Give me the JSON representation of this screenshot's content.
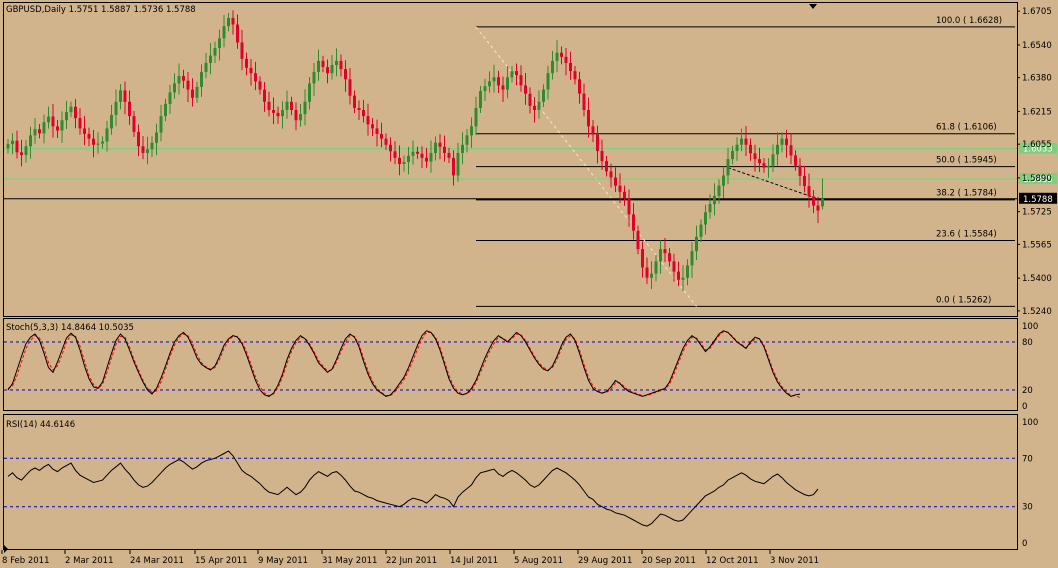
{
  "window": {
    "symbol_info": "GBPUSD,Daily  1.5751 1.5887 1.5736 1.5788"
  },
  "price_axis": {
    "ticks": [
      "1.6705",
      "1.6540",
      "1.6380",
      "1.6215",
      "1.6055",
      "1.5890",
      "1.5725",
      "1.5565",
      "1.5400",
      "1.5240"
    ],
    "current_price_label": "1.5788",
    "level_labels": [
      {
        "text": "1.6033",
        "color": "#7ccf7c"
      },
      {
        "text": "1.5885",
        "color": "#7ccf7c"
      }
    ]
  },
  "fibonacci": {
    "levels": [
      {
        "text": "100.0     ( 1.6628)"
      },
      {
        "text": "61.8     ( 1.6106)"
      },
      {
        "text": "50.0     ( 1.5945)"
      },
      {
        "text": "38.2     ( 1.5784)"
      },
      {
        "text": "23.6     ( 1.5584)"
      },
      {
        "text": "0.0     ( 1.5262)"
      }
    ]
  },
  "stochastic": {
    "label": "Stoch(5,3,3) 14.8464 10.5035",
    "ticks": [
      "100",
      "80",
      "20",
      "0"
    ]
  },
  "rsi": {
    "label": "RSI(14) 44.6146",
    "ticks": [
      "100",
      "70",
      "30",
      "0"
    ]
  },
  "time_axis": {
    "ticks": [
      "8 Feb 2011",
      "2 Mar 2011",
      "24 Mar 2011",
      "15 Apr 2011",
      "9 May 2011",
      "31 May 2011",
      "22 Jun 2011",
      "14 Jul 2011",
      "5 Aug 2011",
      "29 Aug 2011",
      "20 Sep 2011",
      "12 Oct 2011",
      "3 Nov 2011"
    ]
  },
  "colors": {
    "background": "#d2b48c",
    "bull_candle": "#2e8b2e",
    "bear_candle": "#e0002a",
    "horizontal_line": "#7ccf7c",
    "fib_line": "#000000",
    "signal_line": "#ff0000",
    "level_line": "#0000cc"
  },
  "chart_data": {
    "type": "candlestick",
    "title": "GBPUSD,Daily",
    "ohlc_last": {
      "open": 1.5751,
      "high": 1.5887,
      "low": 1.5736,
      "close": 1.5788
    },
    "ylim": [
      1.5215,
      1.6745
    ],
    "horizontal_levels": [
      1.6033,
      1.5885,
      1.5788
    ],
    "fib_levels": [
      {
        "pct": 100.0,
        "price": 1.6628
      },
      {
        "pct": 61.8,
        "price": 1.6106
      },
      {
        "pct": 50.0,
        "price": 1.5945
      },
      {
        "pct": 38.2,
        "price": 1.5784
      },
      {
        "pct": 23.6,
        "price": 1.5584
      },
      {
        "pct": 0.0,
        "price": 1.5262
      }
    ],
    "closes": [
      1.6055,
      1.6072,
      1.6015,
      1.6002,
      1.6045,
      1.6098,
      1.6128,
      1.6108,
      1.6162,
      1.619,
      1.6142,
      1.6122,
      1.6172,
      1.6212,
      1.6238,
      1.6182,
      1.6132,
      1.6105,
      1.6082,
      1.6052,
      1.6058,
      1.6068,
      1.6132,
      1.6198,
      1.6262,
      1.6318,
      1.6262,
      1.6192,
      1.6115,
      1.6045,
      1.6012,
      1.603,
      1.6062,
      1.6112,
      1.6192,
      1.6252,
      1.6308,
      1.6352,
      1.6388,
      1.6365,
      1.6322,
      1.6282,
      1.6335,
      1.6408,
      1.6452,
      1.6488,
      1.6525,
      1.6572,
      1.6632,
      1.6672,
      1.664,
      1.6552,
      1.6472,
      1.6428,
      1.6402,
      1.6362,
      1.6322,
      1.6262,
      1.6222,
      1.6208,
      1.6192,
      1.6222,
      1.6262,
      1.6222,
      1.6172,
      1.6202,
      1.6262,
      1.6352,
      1.6408,
      1.6462,
      1.6432,
      1.6402,
      1.6442,
      1.6462,
      1.6422,
      1.6372,
      1.6292,
      1.6232,
      1.6222,
      1.6192,
      1.6152,
      1.6132,
      1.6105,
      1.6082,
      1.6052,
      1.602,
      1.5988,
      1.5958,
      1.5968,
      1.5998,
      1.6018,
      1.6008,
      1.5988,
      1.597,
      1.6012,
      1.6062,
      1.6042,
      1.6012,
      1.5988,
      1.5902,
      1.6012,
      1.6052,
      1.6098,
      1.6142,
      1.6232,
      1.6315,
      1.6338,
      1.6362,
      1.6382,
      1.6342,
      1.6322,
      1.6382,
      1.6412,
      1.6392,
      1.6342,
      1.6302,
      1.6242,
      1.6222,
      1.6262,
      1.6322,
      1.6402,
      1.6462,
      1.6502,
      1.6482,
      1.6452,
      1.6412,
      1.6372,
      1.6302,
      1.6222,
      1.6142,
      1.6102,
      1.6022,
      1.5972,
      1.5922,
      1.5892,
      1.5852,
      1.5822,
      1.579,
      1.5712,
      1.5632,
      1.5542,
      1.5452,
      1.5402,
      1.5422,
      1.5482,
      1.5542,
      1.5522,
      1.5482,
      1.5432,
      1.5392,
      1.5402,
      1.5462,
      1.5532,
      1.5602,
      1.5662,
      1.5722,
      1.5762,
      1.5802,
      1.5852,
      1.5902,
      1.5982,
      1.6022,
      1.6052,
      1.6082,
      1.6052,
      1.601,
      1.5982,
      1.5962,
      1.594,
      1.595,
      1.6005,
      1.6052,
      1.6082,
      1.605,
      1.6,
      1.595,
      1.59,
      1.585,
      1.58,
      1.5755,
      1.573,
      1.5788
    ],
    "stochastic": {
      "k_last": 14.8464,
      "d_last": 10.5035,
      "levels": [
        80,
        20
      ],
      "k": [
        20,
        28,
        45,
        62,
        78,
        86,
        90,
        82,
        66,
        48,
        42,
        55,
        70,
        85,
        91,
        86,
        70,
        50,
        34,
        24,
        22,
        30,
        48,
        66,
        82,
        90,
        84,
        70,
        55,
        42,
        30,
        20,
        15,
        22,
        35,
        50,
        66,
        80,
        88,
        92,
        86,
        74,
        60,
        52,
        48,
        45,
        50,
        62,
        76,
        84,
        88,
        86,
        78,
        64,
        48,
        32,
        20,
        14,
        12,
        16,
        26,
        40,
        58,
        72,
        82,
        88,
        84,
        76,
        66,
        54,
        48,
        42,
        46,
        58,
        72,
        84,
        90,
        86,
        74,
        56,
        40,
        28,
        20,
        16,
        12,
        14,
        20,
        28,
        36,
        48,
        62,
        76,
        88,
        94,
        92,
        84,
        70,
        52,
        34,
        22,
        16,
        14,
        16,
        22,
        32,
        46,
        60,
        72,
        82,
        88,
        84,
        80,
        86,
        92,
        88,
        80,
        70,
        60,
        52,
        46,
        44,
        50,
        62,
        76,
        86,
        90,
        82,
        66,
        48,
        32,
        22,
        18,
        16,
        18,
        24,
        32,
        28,
        22,
        18,
        16,
        14,
        12,
        14,
        16,
        18,
        20,
        22,
        30,
        44,
        58,
        72,
        82,
        88,
        84,
        76,
        68,
        74,
        82,
        90,
        94,
        92,
        86,
        80,
        76,
        72,
        80,
        86,
        84,
        74,
        58,
        42,
        30,
        22,
        16,
        12,
        14,
        14.8464
      ],
      "d": [
        22,
        25,
        38,
        55,
        72,
        82,
        88,
        85,
        72,
        54,
        45,
        50,
        64,
        80,
        89,
        87,
        75,
        56,
        38,
        27,
        22,
        27,
        42,
        60,
        77,
        87,
        86,
        74,
        58,
        45,
        32,
        22,
        17,
        19,
        30,
        46,
        62,
        76,
        86,
        90,
        88,
        78,
        64,
        54,
        49,
        46,
        48,
        58,
        72,
        82,
        87,
        87,
        80,
        68,
        52,
        36,
        24,
        16,
        13,
        15,
        23,
        36,
        53,
        68,
        79,
        86,
        85,
        78,
        68,
        57,
        50,
        44,
        45,
        55,
        68,
        80,
        88,
        87,
        77,
        60,
        44,
        31,
        22,
        17,
        13,
        13,
        18,
        25,
        33,
        44,
        57,
        71,
        84,
        92,
        92,
        86,
        73,
        56,
        38,
        25,
        18,
        15,
        15,
        20,
        29,
        42,
        55,
        68,
        78,
        86,
        85,
        81,
        84,
        90,
        89,
        82,
        72,
        62,
        54,
        48,
        45,
        48,
        58,
        72,
        83,
        88,
        84,
        70,
        52,
        36,
        25,
        19,
        17,
        17,
        21,
        29,
        29,
        24,
        19,
        17,
        15,
        13,
        13,
        15,
        17,
        19,
        21,
        27,
        40,
        54,
        68,
        79,
        86,
        85,
        78,
        70,
        72,
        80,
        88,
        93,
        92,
        87,
        81,
        77,
        73,
        78,
        84,
        84,
        76,
        61,
        45,
        33,
        24,
        18,
        13,
        13,
        10.5035
      ]
    },
    "rsi": {
      "last": 44.6146,
      "levels": [
        70,
        30
      ],
      "values": [
        55,
        58,
        54,
        52,
        56,
        60,
        62,
        60,
        63,
        65,
        61,
        59,
        62,
        64,
        66,
        60,
        56,
        54,
        52,
        50,
        51,
        52,
        56,
        60,
        63,
        66,
        61,
        57,
        52,
        48,
        46,
        47,
        50,
        54,
        58,
        62,
        65,
        67,
        69,
        67,
        64,
        61,
        63,
        66,
        68,
        69,
        70,
        72,
        74,
        76,
        72,
        66,
        60,
        57,
        55,
        52,
        49,
        45,
        42,
        41,
        40,
        43,
        46,
        43,
        40,
        42,
        46,
        52,
        56,
        59,
        57,
        55,
        58,
        59,
        56,
        52,
        47,
        43,
        42,
        40,
        38,
        37,
        35,
        34,
        33,
        32,
        31,
        30,
        32,
        35,
        37,
        36,
        35,
        33,
        36,
        40,
        38,
        37,
        35,
        30,
        38,
        42,
        45,
        48,
        54,
        58,
        59,
        60,
        61,
        57,
        55,
        58,
        60,
        58,
        55,
        52,
        48,
        46,
        48,
        52,
        56,
        60,
        62,
        60,
        58,
        55,
        52,
        48,
        43,
        38,
        36,
        32,
        30,
        28,
        27,
        25,
        24,
        23,
        21,
        19,
        17,
        15,
        14,
        16,
        20,
        24,
        23,
        21,
        19,
        18,
        19,
        23,
        27,
        31,
        35,
        39,
        41,
        43,
        46,
        48,
        52,
        54,
        56,
        58,
        56,
        53,
        51,
        50,
        49,
        52,
        55,
        57,
        54,
        50,
        47,
        44,
        42,
        40,
        39,
        40,
        44.6146
      ]
    }
  }
}
